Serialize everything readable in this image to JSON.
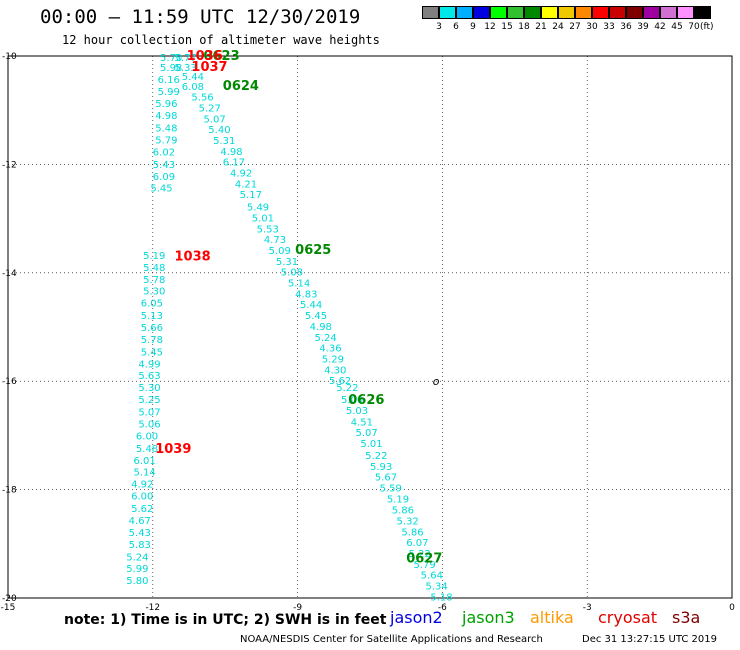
{
  "header": {
    "title": "00:00 – 11:59 UTC 12/30/2019",
    "subtitle": "12 hour collection of altimeter wave heights"
  },
  "colorbar": {
    "colors": [
      "#808080",
      "#00e8e8",
      "#00b0ff",
      "#0000e0",
      "#00ff00",
      "#30c030",
      "#008800",
      "#ffff00",
      "#f0c800",
      "#ff8800",
      "#ff0000",
      "#c80000",
      "#800000",
      "#a000a0",
      "#d070d0",
      "#ff90ff",
      "#000000"
    ],
    "labels": [
      "3",
      "6",
      "9",
      "12",
      "15",
      "18",
      "21",
      "24",
      "27",
      "30",
      "33",
      "36",
      "39",
      "42",
      "45",
      "70"
    ],
    "unit": "(ft)"
  },
  "chart_data": {
    "type": "scatter",
    "title": "12 hour collection of altimeter wave heights",
    "xlabel": "",
    "ylabel": "",
    "xlim": [
      -15,
      0
    ],
    "ylim": [
      -20,
      -10
    ],
    "xticks": [
      -15,
      -12,
      -9,
      -6,
      -3,
      0
    ],
    "yticks": [
      -10,
      -12,
      -14,
      -16,
      -18,
      -20
    ],
    "grid": true,
    "series": [
      {
        "name": "jason2",
        "color": "#00d8d8",
        "labels": [
          {
            "x": -11.85,
            "y": -10.02,
            "text": "5.70"
          },
          {
            "x": -11.55,
            "y": -10.02,
            "text": "5.77"
          },
          {
            "x": -11.85,
            "y": -10.2,
            "text": "5.98"
          },
          {
            "x": -11.55,
            "y": -10.2,
            "text": "5.33"
          },
          {
            "x": -11.4,
            "y": -10.37,
            "text": "5.44"
          },
          {
            "x": -11.9,
            "y": -10.42,
            "text": "6.16"
          },
          {
            "x": -11.4,
            "y": -10.55,
            "text": "6.08"
          },
          {
            "x": -11.9,
            "y": -10.65,
            "text": "5.99"
          },
          {
            "x": -11.2,
            "y": -10.75,
            "text": "5.56"
          },
          {
            "x": -11.95,
            "y": -10.87,
            "text": "5.96"
          },
          {
            "x": -11.05,
            "y": -10.95,
            "text": "5.27"
          },
          {
            "x": -11.95,
            "y": -11.09,
            "text": "4.98"
          },
          {
            "x": -10.95,
            "y": -11.15,
            "text": "5.07"
          },
          {
            "x": -11.95,
            "y": -11.32,
            "text": "5.48"
          },
          {
            "x": -10.85,
            "y": -11.35,
            "text": "5.40"
          },
          {
            "x": -11.95,
            "y": -11.54,
            "text": "5.79"
          },
          {
            "x": -10.75,
            "y": -11.55,
            "text": "5.31"
          },
          {
            "x": -10.6,
            "y": -11.75,
            "text": "4.98"
          },
          {
            "x": -12.0,
            "y": -11.76,
            "text": "6.02"
          },
          {
            "x": -10.55,
            "y": -11.95,
            "text": "6.17"
          },
          {
            "x": -12.0,
            "y": -11.99,
            "text": "5.43"
          },
          {
            "x": -10.4,
            "y": -12.15,
            "text": "4.92"
          },
          {
            "x": -12.0,
            "y": -12.21,
            "text": "6.09"
          },
          {
            "x": -10.3,
            "y": -12.35,
            "text": "4.21"
          },
          {
            "x": -12.05,
            "y": -12.43,
            "text": "5.45"
          },
          {
            "x": -10.2,
            "y": -12.55,
            "text": "5.17"
          },
          {
            "x": -10.05,
            "y": -12.78,
            "text": "5.49"
          },
          {
            "x": -9.95,
            "y": -12.98,
            "text": "5.01"
          },
          {
            "x": -9.85,
            "y": -13.18,
            "text": "5.53"
          },
          {
            "x": -9.7,
            "y": -13.38,
            "text": "4.73"
          },
          {
            "x": -9.6,
            "y": -13.58,
            "text": "5.09"
          },
          {
            "x": -12.2,
            "y": -13.67,
            "text": "5.19"
          },
          {
            "x": -9.45,
            "y": -13.78,
            "text": "5.31"
          },
          {
            "x": -12.2,
            "y": -13.89,
            "text": "5.48"
          },
          {
            "x": -9.35,
            "y": -13.98,
            "text": "5.08"
          },
          {
            "x": -12.2,
            "y": -14.11,
            "text": "5.78"
          },
          {
            "x": -9.2,
            "y": -14.18,
            "text": "5.14"
          },
          {
            "x": -12.2,
            "y": -14.33,
            "text": "5.30"
          },
          {
            "x": -9.05,
            "y": -14.38,
            "text": "4.83"
          },
          {
            "x": -12.25,
            "y": -14.55,
            "text": "6.05"
          },
          {
            "x": -8.95,
            "y": -14.58,
            "text": "5.44"
          },
          {
            "x": -12.25,
            "y": -14.78,
            "text": "5.13"
          },
          {
            "x": -8.85,
            "y": -14.78,
            "text": "5.45"
          },
          {
            "x": -8.75,
            "y": -14.98,
            "text": "4.98"
          },
          {
            "x": -12.25,
            "y": -15.0,
            "text": "5.66"
          },
          {
            "x": -8.65,
            "y": -15.18,
            "text": "5.24"
          },
          {
            "x": -12.25,
            "y": -15.22,
            "text": "5.78"
          },
          {
            "x": -8.55,
            "y": -15.38,
            "text": "4.36"
          },
          {
            "x": -12.25,
            "y": -15.45,
            "text": "5.45"
          },
          {
            "x": -8.5,
            "y": -15.58,
            "text": "5.29"
          },
          {
            "x": -12.3,
            "y": -15.67,
            "text": "4.99"
          },
          {
            "x": -8.45,
            "y": -15.78,
            "text": "4.30"
          },
          {
            "x": -12.3,
            "y": -15.89,
            "text": "5.63"
          },
          {
            "x": -8.35,
            "y": -15.98,
            "text": "5.62"
          },
          {
            "x": -12.3,
            "y": -16.11,
            "text": "5.30"
          },
          {
            "x": -8.2,
            "y": -16.11,
            "text": "5.22"
          },
          {
            "x": -12.3,
            "y": -16.33,
            "text": "5.25"
          },
          {
            "x": -8.1,
            "y": -16.33,
            "text": "5.00"
          },
          {
            "x": -8.0,
            "y": -16.53,
            "text": "5.03"
          },
          {
            "x": -12.3,
            "y": -16.56,
            "text": "5.07"
          },
          {
            "x": -7.9,
            "y": -16.74,
            "text": "4.51"
          },
          {
            "x": -12.3,
            "y": -16.78,
            "text": "5.06"
          },
          {
            "x": -7.8,
            "y": -16.94,
            "text": "5.07"
          },
          {
            "x": -12.35,
            "y": -17.0,
            "text": "6.00"
          },
          {
            "x": -7.7,
            "y": -17.14,
            "text": "5.01"
          },
          {
            "x": -12.35,
            "y": -17.23,
            "text": "5.48"
          },
          {
            "x": -7.6,
            "y": -17.36,
            "text": "5.22"
          },
          {
            "x": -12.4,
            "y": -17.45,
            "text": "6.01"
          },
          {
            "x": -7.5,
            "y": -17.56,
            "text": "5.93"
          },
          {
            "x": -12.4,
            "y": -17.67,
            "text": "5.14"
          },
          {
            "x": -7.4,
            "y": -17.76,
            "text": "5.67"
          },
          {
            "x": -12.45,
            "y": -17.89,
            "text": "4.92"
          },
          {
            "x": -7.3,
            "y": -17.96,
            "text": "5.59"
          },
          {
            "x": -12.45,
            "y": -18.11,
            "text": "6.00"
          },
          {
            "x": -7.15,
            "y": -18.16,
            "text": "5.19"
          },
          {
            "x": -12.45,
            "y": -18.34,
            "text": "5.62"
          },
          {
            "x": -7.05,
            "y": -18.37,
            "text": "5.86"
          },
          {
            "x": -12.5,
            "y": -18.56,
            "text": "4.67"
          },
          {
            "x": -6.95,
            "y": -18.57,
            "text": "5.32"
          },
          {
            "x": -12.5,
            "y": -18.78,
            "text": "5.43"
          },
          {
            "x": -6.85,
            "y": -18.77,
            "text": "5.86"
          },
          {
            "x": -6.75,
            "y": -18.97,
            "text": "6.07"
          },
          {
            "x": -12.5,
            "y": -19.0,
            "text": "5.83"
          },
          {
            "x": -6.7,
            "y": -19.17,
            "text": "5.22"
          },
          {
            "x": -12.55,
            "y": -19.23,
            "text": "5.24"
          },
          {
            "x": -6.6,
            "y": -19.37,
            "text": "5.79"
          },
          {
            "x": -12.55,
            "y": -19.45,
            "text": "5.99"
          },
          {
            "x": -6.45,
            "y": -19.57,
            "text": "5.64"
          },
          {
            "x": -12.55,
            "y": -19.67,
            "text": "5.80"
          },
          {
            "x": -6.35,
            "y": -19.77,
            "text": "5.34"
          },
          {
            "x": -6.25,
            "y": -19.97,
            "text": "5.18"
          }
        ]
      },
      {
        "name": "jason3",
        "color": "#008800",
        "labels": [
          {
            "x": -10.95,
            "y": -10.0,
            "text": "0623"
          },
          {
            "x": -10.55,
            "y": -10.55,
            "text": "0624"
          },
          {
            "x": -9.05,
            "y": -13.58,
            "text": "0625"
          },
          {
            "x": -7.95,
            "y": -16.35,
            "text": "0626"
          },
          {
            "x": -6.75,
            "y": -19.27,
            "text": "0627"
          }
        ]
      },
      {
        "name": "cryosat",
        "color": "#ff0000",
        "labels": [
          {
            "x": -11.3,
            "y": -10.0,
            "text": "1036"
          },
          {
            "x": -11.2,
            "y": -10.2,
            "text": "1037"
          },
          {
            "x": -11.55,
            "y": -13.7,
            "text": "1038"
          },
          {
            "x": -11.95,
            "y": -17.25,
            "text": "1039"
          }
        ]
      }
    ],
    "markers": [
      {
        "x": -6.2,
        "y": -16.0,
        "text": "o"
      }
    ]
  },
  "legend": {
    "note": "note: 1) Time is in UTC; 2) SWH is in feet",
    "satellites": [
      {
        "name": "jason2",
        "color": "#0000e0"
      },
      {
        "name": "jason3",
        "color": "#00a000"
      },
      {
        "name": "altika",
        "color": "#ff9900"
      },
      {
        "name": "cryosat",
        "color": "#e00000"
      },
      {
        "name": "s3a",
        "color": "#800000"
      }
    ]
  },
  "footer": {
    "credit": "NOAA/NESDIS Center for Satellite Applications and Research",
    "timestamp": "Dec 31 13:27:15 UTC 2019"
  }
}
